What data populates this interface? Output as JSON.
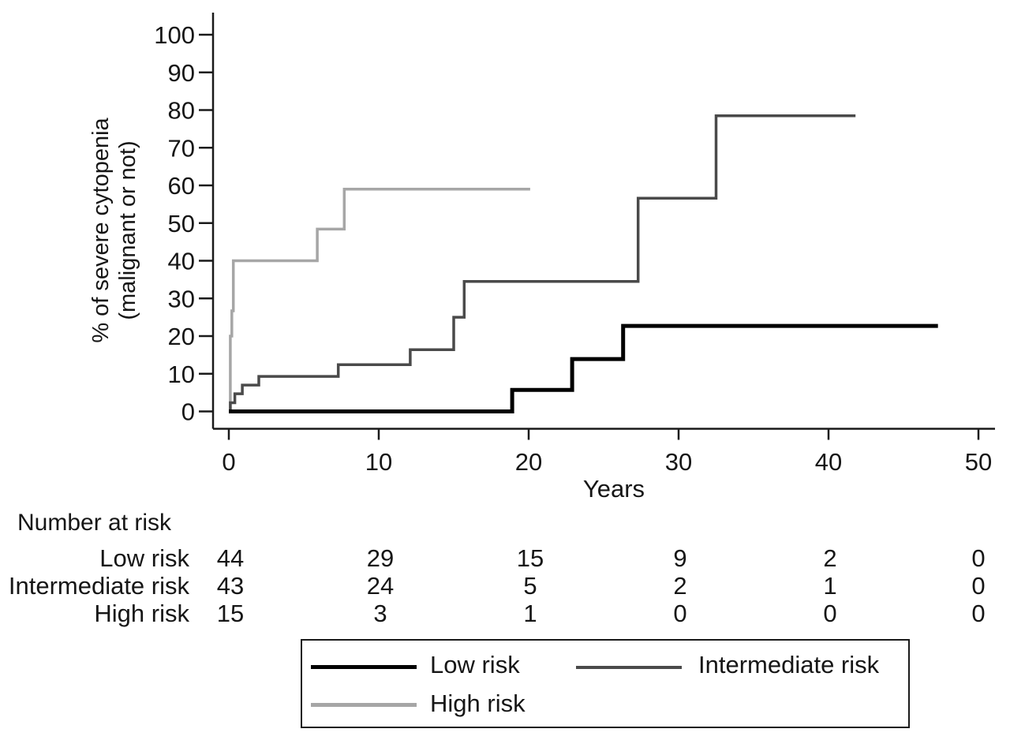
{
  "chart_data": {
    "type": "line",
    "subtype": "kaplan-meier-cumulative-incidence-steps",
    "title": "",
    "xlabel": "Years",
    "ylabel_lines": [
      "% of severe cytopenia",
      "(malignant or not)"
    ],
    "xlim": [
      0,
      50
    ],
    "ylim": [
      0,
      100
    ],
    "xticks": [
      0,
      10,
      20,
      30,
      40,
      50
    ],
    "yticks": [
      0,
      10,
      20,
      30,
      40,
      50,
      60,
      70,
      80,
      90,
      100
    ],
    "grid": "off",
    "legend_position": "bottom-box",
    "series": [
      {
        "name": "Low risk",
        "color": "#000000",
        "line_width": 5,
        "points": [
          [
            0,
            0
          ],
          [
            18.9,
            0
          ],
          [
            18.9,
            5.7
          ],
          [
            22.9,
            5.7
          ],
          [
            22.9,
            13.9
          ],
          [
            26.3,
            13.9
          ],
          [
            26.3,
            22.7
          ],
          [
            47.3,
            22.7
          ]
        ]
      },
      {
        "name": "Intermediate risk",
        "color": "#4a4a4a",
        "line_width": 3.5,
        "points": [
          [
            0,
            0
          ],
          [
            0.1,
            0
          ],
          [
            0.1,
            2.3
          ],
          [
            0.4,
            2.3
          ],
          [
            0.4,
            4.7
          ],
          [
            0.9,
            4.7
          ],
          [
            0.9,
            7.0
          ],
          [
            2.0,
            7.0
          ],
          [
            2.0,
            9.3
          ],
          [
            7.3,
            9.3
          ],
          [
            7.3,
            12.4
          ],
          [
            12.1,
            12.4
          ],
          [
            12.1,
            16.4
          ],
          [
            15.0,
            16.4
          ],
          [
            15.0,
            25.0
          ],
          [
            15.7,
            25.0
          ],
          [
            15.7,
            34.5
          ],
          [
            27.3,
            34.5
          ],
          [
            27.3,
            56.6
          ],
          [
            32.5,
            56.6
          ],
          [
            32.5,
            78.5
          ],
          [
            41.8,
            78.5
          ]
        ]
      },
      {
        "name": "High risk",
        "color": "#a6a6a6",
        "line_width": 3.5,
        "points": [
          [
            0,
            0
          ],
          [
            0.1,
            0
          ],
          [
            0.1,
            20.0
          ],
          [
            0.2,
            20.0
          ],
          [
            0.2,
            26.7
          ],
          [
            0.3,
            26.7
          ],
          [
            0.3,
            40.0
          ],
          [
            5.9,
            40.0
          ],
          [
            5.9,
            48.4
          ],
          [
            7.7,
            48.4
          ],
          [
            7.7,
            59.0
          ],
          [
            20.1,
            59.0
          ]
        ]
      }
    ]
  },
  "risk_table": {
    "heading": "Number at risk",
    "columns_years": [
      0,
      10,
      20,
      30,
      40,
      50
    ],
    "rows": [
      {
        "label": "Low risk",
        "counts": [
          44,
          29,
          15,
          9,
          2,
          0
        ]
      },
      {
        "label": "Intermediate risk",
        "counts": [
          43,
          24,
          5,
          2,
          1,
          0
        ]
      },
      {
        "label": "High risk",
        "counts": [
          15,
          3,
          1,
          0,
          0,
          0
        ]
      }
    ]
  },
  "legend": {
    "entries": [
      {
        "label": "Low risk"
      },
      {
        "label": "Intermediate risk"
      },
      {
        "label": "High risk"
      }
    ]
  }
}
